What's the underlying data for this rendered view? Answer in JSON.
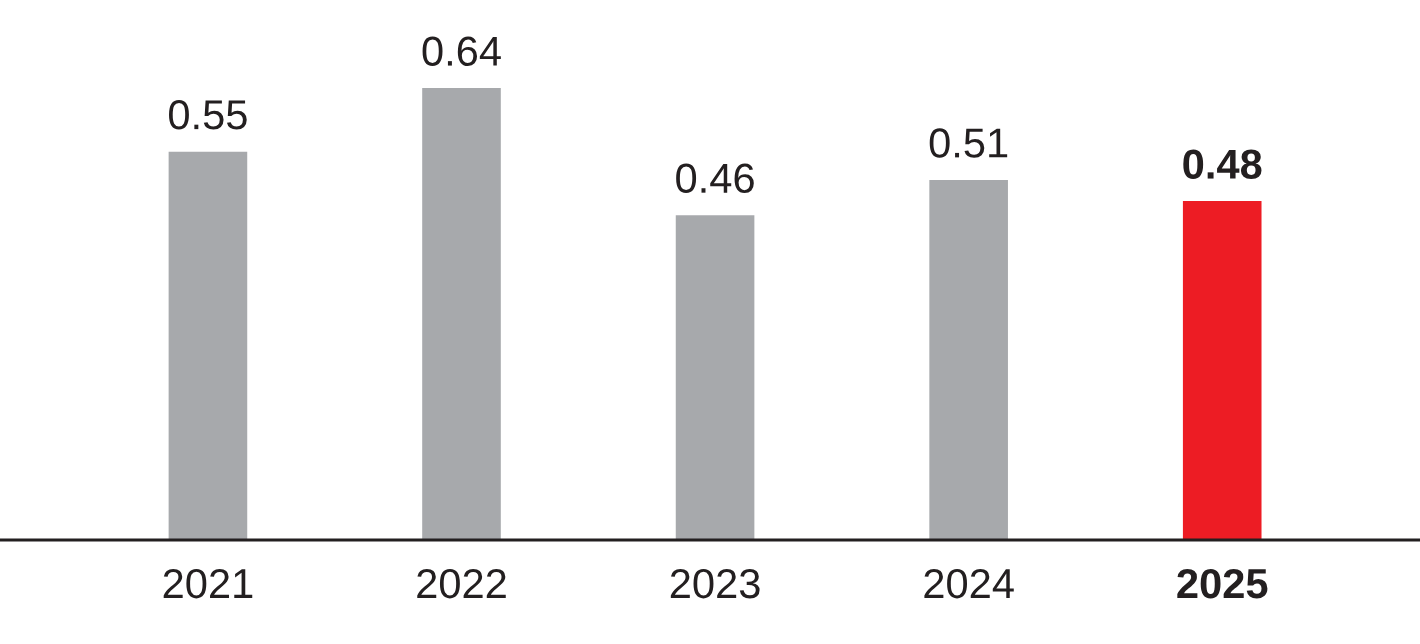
{
  "chart_data": {
    "type": "bar",
    "categories": [
      "2021",
      "2022",
      "2023",
      "2024",
      "2025"
    ],
    "values": [
      0.55,
      0.64,
      0.46,
      0.51,
      0.48
    ],
    "colors": [
      "#a7a9ac",
      "#a7a9ac",
      "#a7a9ac",
      "#a7a9ac",
      "#ed1c24"
    ],
    "data_labels": true,
    "grid": false,
    "legend": false
  }
}
